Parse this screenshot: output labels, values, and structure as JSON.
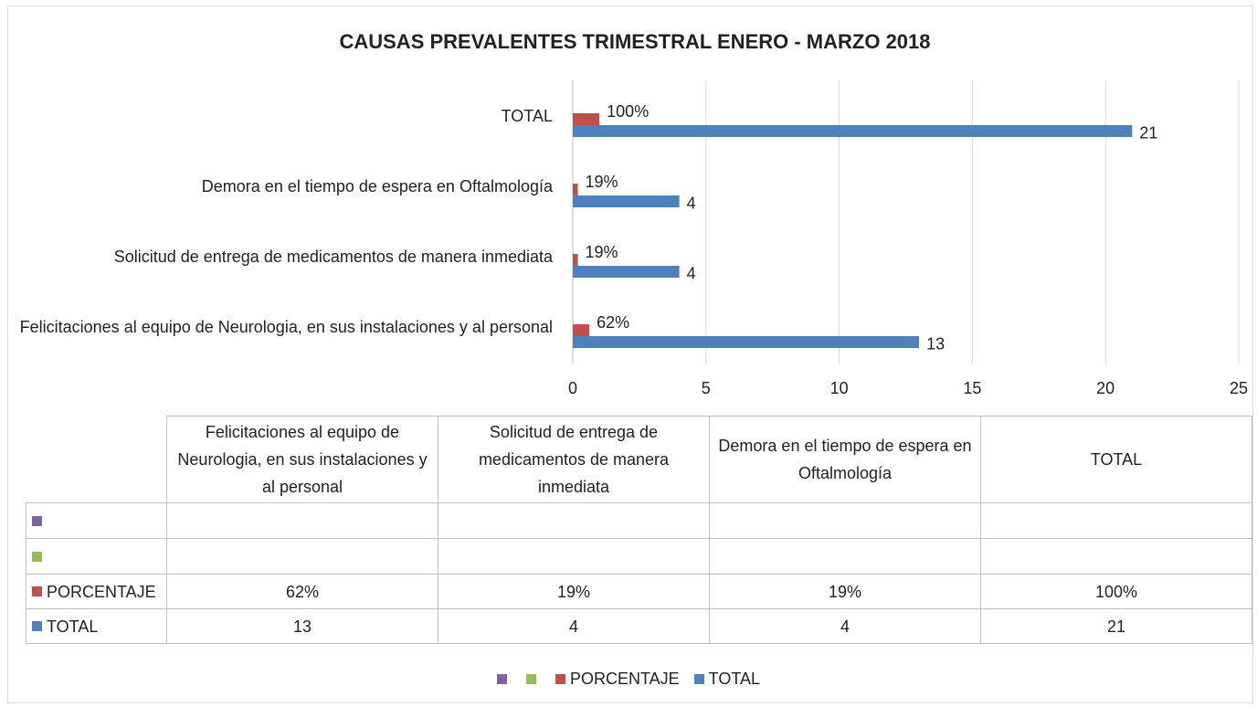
{
  "chart_data": {
    "type": "bar",
    "orientation": "horizontal",
    "title": "CAUSAS PREVALENTES TRIMESTRAL ENERO - MARZO 2018",
    "categories": [
      "Felicitaciones al equipo de Neurologia, en sus instalaciones y al personal",
      "Solicitud de entrega de medicamentos de manera inmediata",
      "Demora en el tiempo de espera en Oftalmología",
      "TOTAL"
    ],
    "series": [
      {
        "color": "#8064a2",
        "values": [
          null,
          null,
          null,
          null
        ]
      },
      {
        "color": "#9bbb59",
        "values": [
          null,
          null,
          null,
          null
        ]
      },
      {
        "name": "PORCENTAJE",
        "color": "#c0504d",
        "values": [
          0.62,
          0.19,
          0.19,
          1.0
        ],
        "value_labels": [
          "62%",
          "19%",
          "19%",
          "100%"
        ]
      },
      {
        "name": "TOTAL",
        "color": "#4f81bd",
        "values": [
          13,
          4,
          4,
          21
        ]
      }
    ],
    "xlim": [
      0,
      25
    ],
    "xticks": [
      0,
      5,
      10,
      15,
      20,
      25
    ],
    "grid": true,
    "legend": "bottom",
    "data_table": true
  }
}
